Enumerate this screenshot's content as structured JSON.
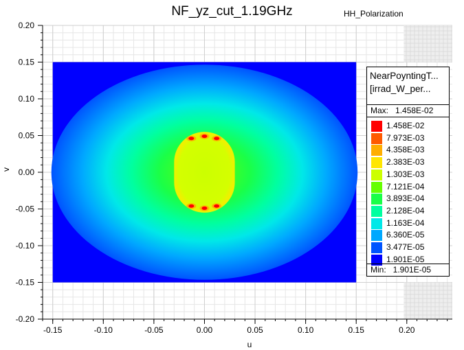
{
  "chart_data": {
    "type": "heatmap",
    "title": "NF_yz_cut_1.19GHz",
    "subtitle": "HH_Polarization",
    "xlabel": "u",
    "ylabel": "v",
    "xlim": [
      -0.16,
      0.245
    ],
    "ylim": [
      -0.2,
      0.2
    ],
    "x_ticks": [
      "-0.15",
      "-0.10",
      "-0.05",
      "0.00",
      "0.05",
      "0.10",
      "0.15",
      "0.20"
    ],
    "x_tick_values": [
      -0.15,
      -0.1,
      -0.05,
      0.0,
      0.05,
      0.1,
      0.15,
      0.2
    ],
    "y_ticks": [
      "0.20",
      "0.15",
      "0.10",
      "0.05",
      "0.00",
      "-0.05",
      "-0.10",
      "-0.15",
      "-0.20"
    ],
    "y_tick_values": [
      0.2,
      0.15,
      0.1,
      0.05,
      0.0,
      -0.05,
      -0.1,
      -0.15,
      -0.2
    ],
    "data_extent": {
      "u": [
        -0.15,
        0.15
      ],
      "v": [
        -0.15,
        0.15
      ]
    },
    "grid": true,
    "legend": {
      "title_line1": "NearPoyntingT...",
      "title_line2": "[irrad_W_per...",
      "max_label": "Max:",
      "max_value": "1.458E-02",
      "min_label": "Min:",
      "min_value": "1.901E-05",
      "levels": [
        {
          "label": "1.458E-02",
          "color": "#ff0000"
        },
        {
          "label": "7.973E-03",
          "color": "#ff5a00"
        },
        {
          "label": "4.358E-03",
          "color": "#ffae00"
        },
        {
          "label": "2.383E-03",
          "color": "#ffe600"
        },
        {
          "label": "1.303E-03",
          "color": "#ccff00"
        },
        {
          "label": "7.121E-04",
          "color": "#66ff00"
        },
        {
          "label": "3.893E-04",
          "color": "#1aff48"
        },
        {
          "label": "2.128E-04",
          "color": "#00ffa0"
        },
        {
          "label": "1.163E-04",
          "color": "#00e8e8"
        },
        {
          "label": "6.360E-05",
          "color": "#00a8ff"
        },
        {
          "label": "3.477E-05",
          "color": "#0054ff"
        },
        {
          "label": "1.901E-05",
          "color": "#0000ff"
        }
      ]
    }
  }
}
